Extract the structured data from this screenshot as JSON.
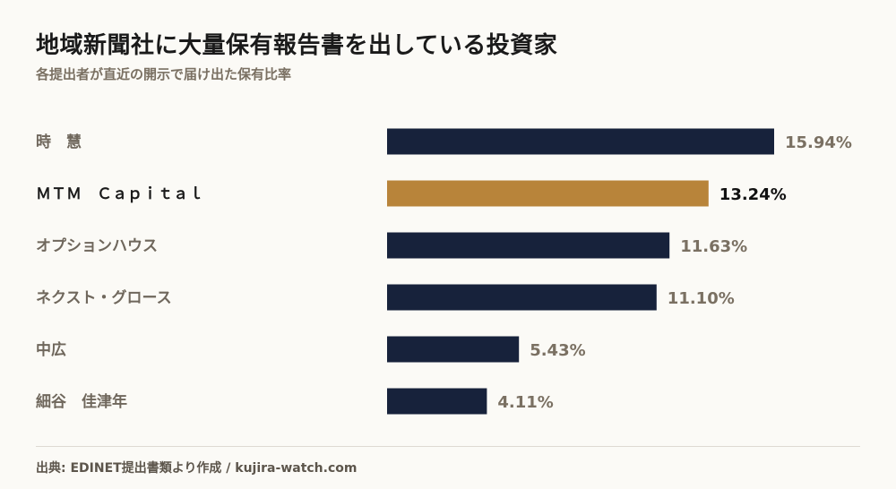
{
  "title": "地域新聞社に大量保有報告書を出している投資家",
  "subtitle": "各提出者が直近の開示で届け出た保有比率",
  "source": "出典: EDINET提出書類より作成 / kujira-watch.com",
  "colors": {
    "bar": "#17223b",
    "highlight_bar": "#b8843a",
    "label": "#6f675c",
    "highlight_label": "#1a1a1a",
    "value": "#7a7062",
    "highlight_value": "#111111"
  },
  "chart_data": {
    "type": "bar",
    "orientation": "horizontal",
    "categories": [
      "時　慧",
      "ＭＴＭ　Ｃａｐｉｔａｌ",
      "オプションハウス",
      "ネクスト・グロース",
      "中広",
      "細谷　佳津年"
    ],
    "values": [
      15.94,
      13.24,
      11.63,
      11.1,
      5.43,
      4.11
    ],
    "value_labels": [
      "15.94%",
      "13.24%",
      "11.63%",
      "11.10%",
      "5.43%",
      "4.11%"
    ],
    "highlight_index": 1,
    "unit": "%",
    "xlim": [
      0,
      15.94
    ],
    "grid": false
  }
}
